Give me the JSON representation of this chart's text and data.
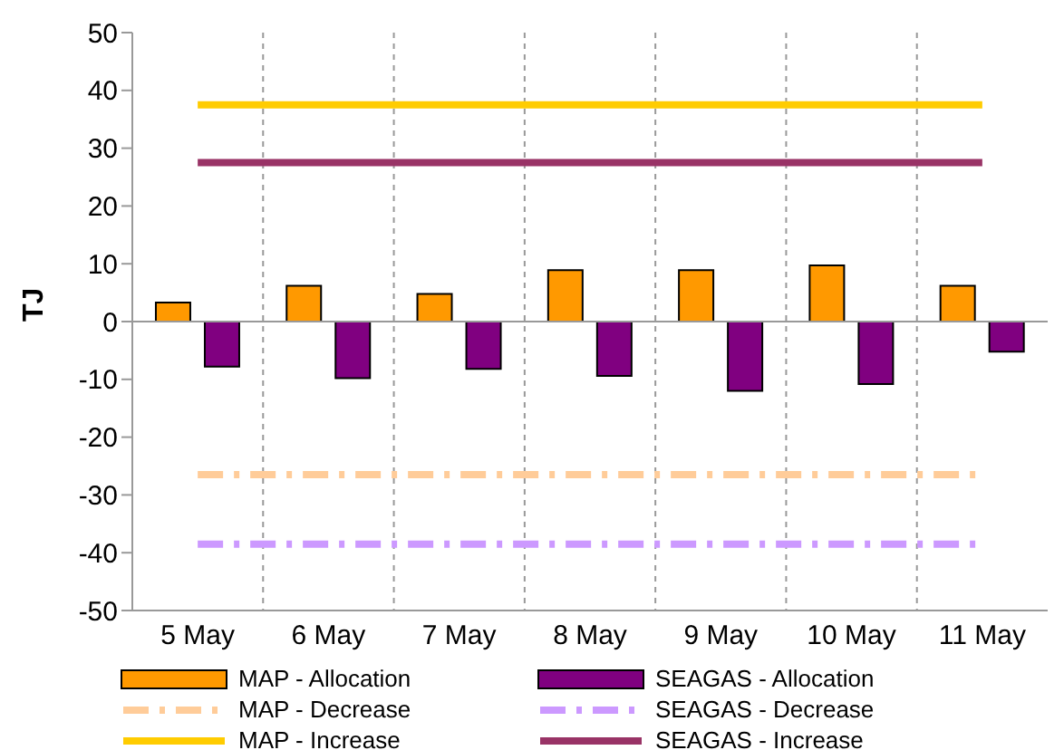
{
  "chart_data": {
    "type": "bar",
    "ylabel": "TJ",
    "categories": [
      "5 May",
      "6 May",
      "7 May",
      "8 May",
      "9 May",
      "10 May",
      "11 May"
    ],
    "series": [
      {
        "name": "MAP - Allocation",
        "color": "#ff9900",
        "values": [
          3.3,
          6.2,
          4.8,
          8.9,
          8.9,
          9.7,
          6.2
        ]
      },
      {
        "name": "SEAGAS - Allocation",
        "color": "#800080",
        "values": [
          -7.8,
          -9.8,
          -8.2,
          -9.4,
          -12,
          -10.8,
          -5.2
        ]
      },
      {
        "name": "MAP - Decrease",
        "type": "line",
        "line_style": "dashed",
        "color": "#ffcc99",
        "values": [
          -26.5,
          -26.5,
          -26.5,
          -26.5,
          -26.5,
          -26.5,
          -26.5
        ]
      },
      {
        "name": "SEAGAS - Decrease",
        "type": "line",
        "line_style": "dashed",
        "color": "#cc99ff",
        "values": [
          -38.5,
          -38.5,
          -38.5,
          -38.5,
          -38.5,
          -38.5,
          -38.5
        ]
      },
      {
        "name": "MAP - Increase",
        "type": "line",
        "line_style": "solid",
        "color": "#ffcc00",
        "values": [
          37.5,
          37.5,
          37.5,
          37.5,
          37.5,
          37.5,
          37.5
        ]
      },
      {
        "name": "SEAGAS - Increase",
        "type": "line",
        "line_style": "solid",
        "color": "#993366",
        "values": [
          27.5,
          27.5,
          27.5,
          27.5,
          27.5,
          27.5,
          27.5
        ]
      }
    ],
    "ylim": [
      -50,
      50
    ],
    "yticks": [
      -50,
      -40,
      -30,
      -20,
      -10,
      0,
      10,
      20,
      30,
      40,
      50
    ],
    "grid": "x",
    "legend": "bottom",
    "marker": "none"
  }
}
